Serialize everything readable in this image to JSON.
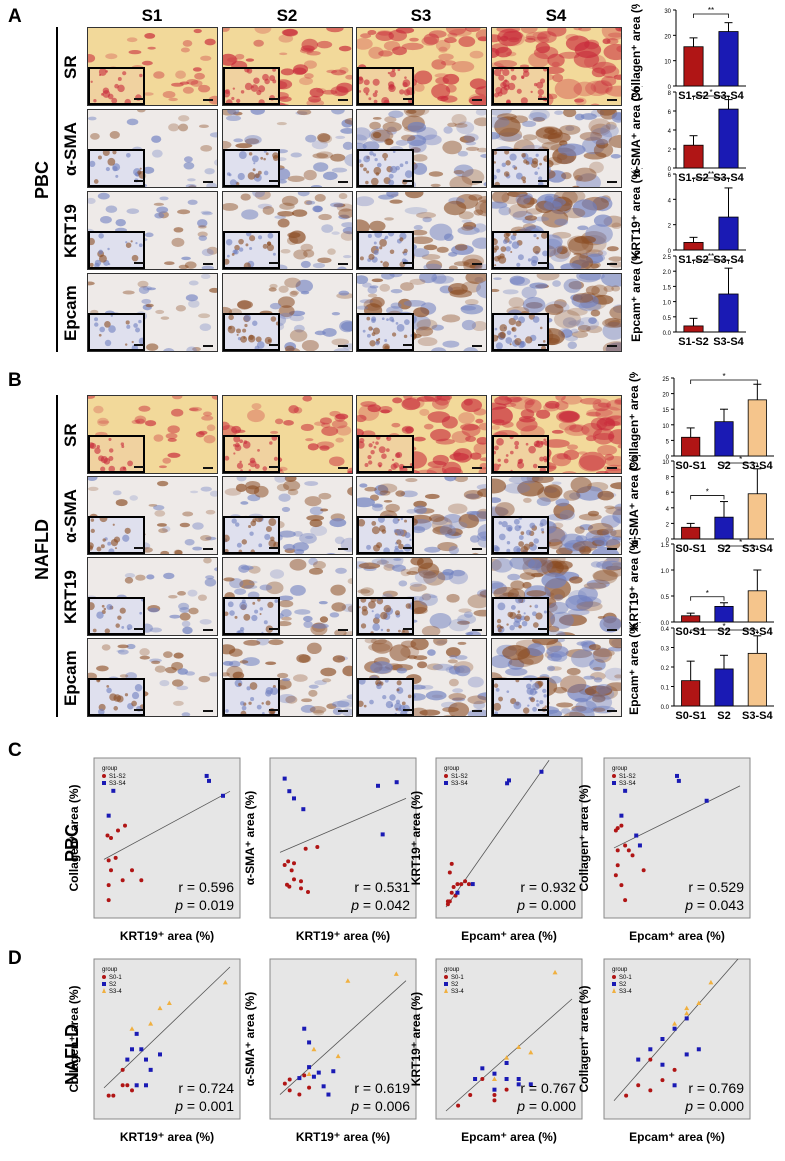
{
  "panels": {
    "A": "A",
    "B": "B",
    "C": "C",
    "D": "D"
  },
  "columns": [
    "S1",
    "S2",
    "S3",
    "S4"
  ],
  "groups": {
    "pbc": "PBC",
    "nafld": "NAFLD"
  },
  "rows": [
    "SR",
    "α-SMA",
    "KRT19",
    "Epcam"
  ],
  "colors": {
    "s1s2": "#b01515",
    "s3s4": "#1a1ab4",
    "s2": "#1a1ab4",
    "s3s4_nafld": "#f5c58c",
    "scatter_bg": "#e6e6e6"
  },
  "stains": {
    "sr_bg": "#f2d99a",
    "sr_red": "#c8293a",
    "ihc_bg": "#eeeae8",
    "ihc_brown": "#8a4b22",
    "ihc_blue": "#6f7fc0"
  },
  "bar_charts_pbc": [
    {
      "ylabel": "Collagen⁺ area (%)",
      "categories": [
        "S1-S2",
        "S3-S4"
      ],
      "values": [
        15.5,
        21.5
      ],
      "errors": [
        3.5,
        3.5
      ],
      "ylim": [
        0,
        30
      ],
      "yticks": [
        "0",
        "10",
        "20",
        "30"
      ],
      "sig": [
        "**"
      ]
    },
    {
      "ylabel": "α-SMA⁺ area (%)",
      "categories": [
        "S1-S2",
        "S3-S4"
      ],
      "values": [
        2.4,
        6.2
      ],
      "errors": [
        1.0,
        1.0
      ],
      "ylim": [
        0,
        8
      ],
      "yticks": [
        "0",
        "2",
        "4",
        "6",
        "8"
      ],
      "sig": [
        "*"
      ]
    },
    {
      "ylabel": "KRT19⁺ area (%)",
      "categories": [
        "S1-S2",
        "S3-S4"
      ],
      "values": [
        0.6,
        2.6
      ],
      "errors": [
        0.4,
        2.3
      ],
      "ylim": [
        0,
        6
      ],
      "yticks": [
        "0",
        "2",
        "4",
        "6"
      ],
      "sig": [
        "**"
      ]
    },
    {
      "ylabel": "Epcam⁺ area (%)",
      "categories": [
        "S1-S2",
        "S3-S4"
      ],
      "values": [
        0.2,
        1.25
      ],
      "errors": [
        0.25,
        0.85
      ],
      "ylim": [
        0,
        2.5
      ],
      "yticks": [
        "0.0",
        "0.5",
        "1.0",
        "1.5",
        "2.0",
        "2.5"
      ],
      "sig": [
        "**"
      ]
    }
  ],
  "bar_charts_nafld": [
    {
      "ylabel": "Collagen⁺ area (%)",
      "categories": [
        "S0-S1",
        "S2",
        "S3-S4"
      ],
      "values": [
        6,
        11,
        18
      ],
      "errors": [
        3,
        4,
        5
      ],
      "ylim": [
        0,
        25
      ],
      "yticks": [
        "0",
        "5",
        "10",
        "15",
        "20",
        "25"
      ],
      "sig": [
        "*"
      ]
    },
    {
      "ylabel": "α-SMA⁺ area (%)",
      "categories": [
        "S0-S1",
        "S2",
        "S3-S4"
      ],
      "values": [
        1.5,
        2.8,
        5.8
      ],
      "errors": [
        0.5,
        2.0,
        3.2
      ],
      "ylim": [
        0,
        10
      ],
      "yticks": [
        "0",
        "2",
        "4",
        "6",
        "8",
        "10"
      ],
      "sig": [
        "*",
        "*"
      ]
    },
    {
      "ylabel": "KRT19⁺ area (%)",
      "categories": [
        "S0-S1",
        "S2",
        "S3-S4"
      ],
      "values": [
        0.12,
        0.3,
        0.6
      ],
      "errors": [
        0.05,
        0.07,
        0.4
      ],
      "ylim": [
        0,
        1.5
      ],
      "yticks": [
        "0.0",
        "0.5",
        "1.0",
        "1.5"
      ],
      "sig": [
        "*",
        "*"
      ]
    },
    {
      "ylabel": "Epcam⁺ area (%)",
      "categories": [
        "S0-S1",
        "S2",
        "S3-S4"
      ],
      "values": [
        0.13,
        0.19,
        0.27
      ],
      "errors": [
        0.1,
        0.07,
        0.09
      ],
      "ylim": [
        0,
        0.4
      ],
      "yticks": [
        "0.0",
        "0.1",
        "0.2",
        "0.3",
        "0.4"
      ],
      "sig": [
        "*"
      ]
    }
  ],
  "scatter_pbc": [
    {
      "ylabel": "Collagen⁺ area (%)",
      "xlabel": "KRT19⁺ area (%)",
      "r": "r = 0.596",
      "p": "= 0.019",
      "legend": [
        "S1-S2",
        "S3-S4"
      ],
      "s1s2": [
        [
          0.15,
          18
        ],
        [
          0.3,
          17.5
        ],
        [
          0.6,
          19
        ],
        [
          0.9,
          20
        ],
        [
          0.2,
          13
        ],
        [
          0.5,
          13.5
        ],
        [
          0.3,
          11
        ],
        [
          0.8,
          9
        ],
        [
          0.2,
          8
        ],
        [
          1.6,
          9
        ],
        [
          0.2,
          5
        ],
        [
          1.2,
          11
        ]
      ],
      "s3s4": [
        [
          0.2,
          22
        ],
        [
          0.4,
          27
        ],
        [
          4.4,
          30
        ],
        [
          4.5,
          29
        ],
        [
          5.1,
          26
        ]
      ],
      "line": [
        [
          0,
          13.2
        ],
        [
          5.4,
          26.9
        ]
      ],
      "xlim": [
        0,
        5.4
      ],
      "ylim": [
        3,
        32
      ]
    },
    {
      "ylabel": "α-SMA⁺ area (%)",
      "xlabel": "KRT19⁺ area (%)",
      "r": "r = 0.531",
      "p": "= 0.042",
      "legend": [],
      "s1s2": [
        [
          0.2,
          2.5
        ],
        [
          0.35,
          2.7
        ],
        [
          0.5,
          2.2
        ],
        [
          0.6,
          1.7
        ],
        [
          0.3,
          1.4
        ],
        [
          0.9,
          1.6
        ],
        [
          1.1,
          3.4
        ],
        [
          1.6,
          3.5
        ],
        [
          0.9,
          1.2
        ],
        [
          1.2,
          1.0
        ],
        [
          0.4,
          1.3
        ],
        [
          0.6,
          2.6
        ]
      ],
      "s3s4": [
        [
          0.2,
          7.3
        ],
        [
          0.4,
          6.6
        ],
        [
          0.6,
          6.2
        ],
        [
          1.0,
          5.6
        ],
        [
          4.2,
          6.9
        ],
        [
          4.4,
          4.2
        ],
        [
          5.0,
          7.1
        ]
      ],
      "line": [
        [
          0,
          3.2
        ],
        [
          5.4,
          6.2
        ]
      ],
      "xlim": [
        0,
        5.4
      ],
      "ylim": [
        0,
        8
      ]
    },
    {
      "ylabel": "KRT19⁺ area (%)",
      "xlabel": "Epcam⁺ area (%)",
      "r": "r = 0.932",
      "p": "= 0.000",
      "legend": [
        "S1-S2",
        "S3-S4"
      ],
      "s1s2": [
        [
          0.05,
          0.3
        ],
        [
          0.1,
          0.3
        ],
        [
          0.15,
          0.6
        ],
        [
          0.2,
          0.8
        ],
        [
          0.3,
          0.9
        ],
        [
          0.4,
          0.9
        ],
        [
          0.5,
          1.0
        ],
        [
          0.1,
          1.3
        ],
        [
          0.15,
          1.6
        ],
        [
          0.6,
          0.9
        ],
        [
          0.05,
          0.2
        ],
        [
          0.25,
          0.5
        ]
      ],
      "s3s4": [
        [
          0.3,
          0.6
        ],
        [
          0.7,
          0.9
        ],
        [
          1.6,
          4.4
        ],
        [
          1.65,
          4.5
        ],
        [
          2.5,
          4.8
        ]
      ],
      "line": [
        [
          0,
          0.1
        ],
        [
          2.7,
          5.2
        ]
      ],
      "xlim": [
        0,
        3.3
      ],
      "ylim": [
        0,
        5
      ]
    },
    {
      "ylabel": "Collagen⁺ area (%)",
      "xlabel": "Epcam⁺ area (%)",
      "r": "r = 0.529",
      "p": "= 0.043",
      "legend": [
        "S1-S2",
        "S3-S4"
      ],
      "s1s2": [
        [
          0.05,
          19
        ],
        [
          0.1,
          19.5
        ],
        [
          0.2,
          20
        ],
        [
          0.3,
          16
        ],
        [
          0.1,
          15
        ],
        [
          0.4,
          15
        ],
        [
          0.1,
          12
        ],
        [
          0.8,
          11
        ],
        [
          0.2,
          8
        ],
        [
          0.3,
          5
        ],
        [
          0.05,
          10
        ],
        [
          0.5,
          14
        ]
      ],
      "s3s4": [
        [
          0.2,
          22
        ],
        [
          0.3,
          27
        ],
        [
          1.7,
          30
        ],
        [
          1.75,
          29
        ],
        [
          2.5,
          25
        ],
        [
          0.6,
          18
        ],
        [
          0.7,
          16
        ]
      ],
      "line": [
        [
          0,
          15.5
        ],
        [
          3.4,
          28
        ]
      ],
      "xlim": [
        0,
        3.4
      ],
      "ylim": [
        3,
        32
      ]
    }
  ],
  "scatter_nafld": [
    {
      "ylabel": "Collagen⁺ area (%)",
      "xlabel": "KRT19⁺ area (%)",
      "r": "r = 0.724",
      "p": "= 0.001",
      "legend": [
        "S0-1",
        "S2",
        "S3-4"
      ],
      "g1": [
        [
          0.05,
          3
        ],
        [
          0.1,
          3
        ],
        [
          0.2,
          5
        ],
        [
          0.25,
          5
        ],
        [
          0.2,
          8
        ],
        [
          0.3,
          4
        ]
      ],
      "g2": [
        [
          0.25,
          10
        ],
        [
          0.3,
          12
        ],
        [
          0.35,
          15
        ],
        [
          0.4,
          12
        ],
        [
          0.5,
          8
        ],
        [
          0.45,
          10
        ],
        [
          0.6,
          11
        ],
        [
          0.35,
          5
        ],
        [
          0.45,
          5
        ]
      ],
      "g3": [
        [
          0.3,
          16
        ],
        [
          0.5,
          17
        ],
        [
          0.6,
          20
        ],
        [
          0.7,
          21
        ],
        [
          1.3,
          25
        ]
      ],
      "line": [
        [
          0,
          4.5
        ],
        [
          1.35,
          28
        ]
      ],
      "xlim": [
        0,
        1.35
      ],
      "ylim": [
        0,
        28
      ]
    },
    {
      "ylabel": "α-SMA⁺ area (%)",
      "xlabel": "KRT19⁺ area (%)",
      "r": "r = 0.619",
      "p": "= 0.006",
      "legend": [],
      "g1": [
        [
          0.05,
          2
        ],
        [
          0.1,
          1.5
        ],
        [
          0.2,
          1.2
        ],
        [
          0.3,
          1.7
        ],
        [
          0.1,
          2.3
        ],
        [
          0.25,
          2.6
        ]
      ],
      "g2": [
        [
          0.25,
          6
        ],
        [
          0.3,
          3.2
        ],
        [
          0.35,
          2.5
        ],
        [
          0.4,
          2.8
        ],
        [
          0.45,
          1.8
        ],
        [
          0.5,
          1.2
        ],
        [
          0.55,
          2.9
        ],
        [
          0.3,
          5
        ],
        [
          0.2,
          2.4
        ]
      ],
      "g3": [
        [
          0.35,
          4.5
        ],
        [
          0.6,
          4
        ],
        [
          0.7,
          9.5
        ],
        [
          1.2,
          10
        ],
        [
          0.3,
          2.7
        ]
      ],
      "line": [
        [
          0,
          1.2
        ],
        [
          1.3,
          9.5
        ]
      ],
      "xlim": [
        0,
        1.3
      ],
      "ylim": [
        0,
        10.5
      ]
    },
    {
      "ylabel": "KRT19⁺ area (%)",
      "xlabel": "Epcam⁺ area (%)",
      "r": "r = 0.767",
      "p": "= 0.000",
      "legend": [
        "S0-1",
        "S2",
        "S3-4"
      ],
      "g1": [
        [
          0.05,
          0.05
        ],
        [
          0.1,
          0.15
        ],
        [
          0.15,
          0.3
        ],
        [
          0.2,
          0.1
        ],
        [
          0.25,
          0.2
        ],
        [
          0.2,
          0.15
        ]
      ],
      "g2": [
        [
          0.12,
          0.3
        ],
        [
          0.15,
          0.4
        ],
        [
          0.2,
          0.35
        ],
        [
          0.25,
          0.45
        ],
        [
          0.3,
          0.3
        ],
        [
          0.35,
          0.25
        ],
        [
          0.2,
          0.2
        ],
        [
          0.3,
          0.25
        ],
        [
          0.25,
          0.3
        ]
      ],
      "g3": [
        [
          0.25,
          0.5
        ],
        [
          0.35,
          0.55
        ],
        [
          0.45,
          1.3
        ],
        [
          0.2,
          0.3
        ],
        [
          0.3,
          0.6
        ]
      ],
      "line": [
        [
          0,
          0.0
        ],
        [
          0.52,
          1.05
        ]
      ],
      "xlim": [
        0,
        0.52
      ],
      "ylim": [
        0,
        1.35
      ]
    },
    {
      "ylabel": "Collagen⁺ area (%)",
      "xlabel": "Epcam⁺ area (%)",
      "r": "r = 0.769",
      "p": "= 0.000",
      "legend": [
        "S0-1",
        "S2",
        "S3-4"
      ],
      "g1": [
        [
          0.05,
          3
        ],
        [
          0.1,
          5
        ],
        [
          0.15,
          4
        ],
        [
          0.2,
          6
        ],
        [
          0.25,
          8
        ],
        [
          0.15,
          10
        ]
      ],
      "g2": [
        [
          0.1,
          10
        ],
        [
          0.15,
          12
        ],
        [
          0.2,
          14
        ],
        [
          0.25,
          16
        ],
        [
          0.3,
          18
        ],
        [
          0.2,
          9
        ],
        [
          0.3,
          11
        ],
        [
          0.25,
          5
        ],
        [
          0.35,
          12
        ]
      ],
      "g3": [
        [
          0.25,
          17
        ],
        [
          0.3,
          20
        ],
        [
          0.35,
          21
        ],
        [
          0.4,
          25
        ],
        [
          0.3,
          19
        ]
      ],
      "line": [
        [
          0,
          2
        ],
        [
          0.52,
          30
        ]
      ],
      "xlim": [
        0,
        0.52
      ],
      "ylim": [
        0,
        28
      ]
    }
  ]
}
